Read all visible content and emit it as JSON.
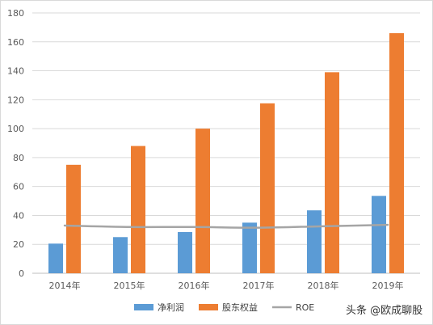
{
  "chart_data": {
    "type": "bar",
    "categories": [
      "2014年",
      "2015年",
      "2016年",
      "2017年",
      "2018年",
      "2019年"
    ],
    "series": [
      {
        "name": "净利润",
        "type": "bar",
        "color": "#5B9BD5",
        "values": [
          20.5,
          25,
          28.5,
          35,
          43.5,
          53.5
        ]
      },
      {
        "name": "股东权益",
        "type": "bar",
        "color": "#ED7D31",
        "values": [
          75,
          88,
          100,
          117.5,
          139,
          166
        ]
      },
      {
        "name": "ROE",
        "type": "line",
        "color": "#A5A5A5",
        "values": [
          33,
          32,
          32,
          31.5,
          32.5,
          33.5
        ]
      }
    ],
    "ylim": [
      0,
      180
    ],
    "yticks": [
      0,
      20,
      40,
      60,
      80,
      100,
      120,
      140,
      160,
      180
    ],
    "grid": true,
    "legend": "bottom"
  },
  "watermark": "头条 @欧成聊股"
}
